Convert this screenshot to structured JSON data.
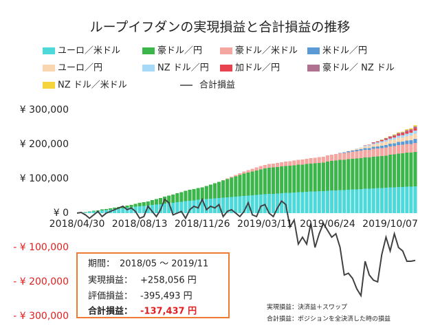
{
  "chart_data": {
    "type": "bar",
    "title": "ループイフダンの実現損益と合計損益の推移",
    "categories": [
      "2018/04/30",
      null,
      null,
      null,
      null,
      null,
      null,
      null,
      null,
      null,
      null,
      null,
      null,
      null,
      null,
      "2018/08/13",
      null,
      null,
      null,
      null,
      null,
      null,
      null,
      null,
      null,
      null,
      null,
      null,
      null,
      null,
      "2018/11/26",
      null,
      null,
      null,
      null,
      null,
      null,
      null,
      null,
      null,
      null,
      null,
      null,
      null,
      null,
      "2019/03/11",
      null,
      null,
      null,
      null,
      null,
      null,
      null,
      null,
      null,
      null,
      null,
      null,
      null,
      null,
      "2019/06/24",
      null,
      null,
      null,
      null,
      null,
      null,
      null,
      null,
      null,
      null,
      null,
      null,
      null,
      null,
      "2019/10/07",
      null,
      null,
      null,
      null,
      null,
      null
    ],
    "ylim": [
      -300000,
      300000
    ],
    "yticks": [
      {
        "value": 300000,
        "label": "¥ 300,000"
      },
      {
        "value": 200000,
        "label": "¥ 200,000"
      },
      {
        "value": 100000,
        "label": "¥ 100,000"
      },
      {
        "value": 0,
        "label": "¥ 0"
      },
      {
        "value": -100000,
        "label": "- ¥ 100,000"
      },
      {
        "value": -200000,
        "label": "- ¥ 200,000"
      },
      {
        "value": -300000,
        "label": "- ¥ 300,000"
      }
    ],
    "grid": false,
    "series": [
      {
        "name": "ユーロ／米ドル",
        "type": "bar",
        "color": "#4dd9d9",
        "values": [
          0,
          1000,
          2000,
          4000,
          5000,
          6000,
          8000,
          9000,
          10000,
          12000,
          13000,
          14000,
          16000,
          17000,
          19000,
          20000,
          21000,
          22000,
          24000,
          25000,
          26000,
          28000,
          29000,
          30000,
          32000,
          33000,
          35000,
          36000,
          37000,
          39000,
          40000,
          41000,
          42000,
          43000,
          44000,
          45000,
          46000,
          47000,
          48000,
          49000,
          50000,
          51000,
          52000,
          53000,
          54000,
          55000,
          56000,
          56000,
          57000,
          58000,
          59000,
          59000,
          60000,
          61000,
          61000,
          62000,
          63000,
          63000,
          64000,
          64000,
          65000,
          66000,
          66000,
          67000,
          67000,
          68000,
          69000,
          69000,
          70000,
          71000,
          71000,
          72000,
          73000,
          73000,
          74000,
          75000,
          75000,
          76000,
          76000,
          77000,
          77000,
          78000
        ]
      },
      {
        "name": "豪ドル／円",
        "type": "bar",
        "color": "#3cb54a",
        "values": [
          0,
          0,
          1000,
          1000,
          2000,
          2000,
          3000,
          3000,
          4000,
          4000,
          5000,
          5000,
          6000,
          7000,
          8000,
          10000,
          11000,
          12000,
          14000,
          16000,
          18000,
          20000,
          22000,
          24000,
          26000,
          28000,
          30000,
          32000,
          33000,
          34000,
          35000,
          38000,
          41000,
          44000,
          47000,
          50000,
          53000,
          56000,
          59000,
          62000,
          65000,
          67000,
          69000,
          71000,
          73000,
          75000,
          76000,
          77000,
          77000,
          78000,
          78000,
          79000,
          79000,
          80000,
          80000,
          81000,
          81000,
          82000,
          82000,
          83000,
          85000,
          86000,
          87000,
          88000,
          88000,
          89000,
          89000,
          90000,
          90000,
          91000,
          91000,
          92000,
          92000,
          93000,
          93000,
          95000,
          96000,
          97000,
          98000,
          99000,
          99000,
          100000
        ]
      },
      {
        "name": "豪ドル／米ドル",
        "type": "bar",
        "color": "#f4a6a0",
        "values": [
          0,
          0,
          0,
          0,
          0,
          0,
          0,
          0,
          0,
          0,
          0,
          0,
          0,
          0,
          0,
          0,
          0,
          0,
          0,
          0,
          0,
          0,
          0,
          0,
          0,
          0,
          0,
          0,
          0,
          0,
          0,
          0,
          0,
          0,
          0,
          1000,
          2000,
          3000,
          4000,
          5000,
          6000,
          7000,
          8000,
          9000,
          10000,
          10000,
          11000,
          11000,
          12000,
          12000,
          13000,
          13000,
          14000,
          14000,
          15000,
          15000,
          16000,
          16000,
          17000,
          17000,
          18000,
          18000,
          19000,
          19000,
          20000,
          20000,
          21000,
          21000,
          22000,
          22000,
          22000,
          23000,
          23000,
          23000,
          24000,
          24000,
          24000,
          25000,
          25000,
          25000,
          25000,
          26000
        ]
      },
      {
        "name": "米ドル／円",
        "type": "bar",
        "color": "#5b9bd5",
        "values": [
          0,
          0,
          0,
          0,
          0,
          0,
          0,
          0,
          0,
          0,
          0,
          0,
          0,
          0,
          0,
          0,
          0,
          0,
          0,
          0,
          0,
          0,
          0,
          0,
          0,
          0,
          0,
          0,
          0,
          0,
          0,
          0,
          0,
          0,
          0,
          0,
          0,
          0,
          0,
          0,
          0,
          0,
          0,
          0,
          0,
          0,
          0,
          0,
          0,
          0,
          0,
          0,
          0,
          0,
          0,
          0,
          0,
          0,
          0,
          0,
          0,
          0,
          0,
          1000,
          2000,
          3000,
          3000,
          4000,
          4000,
          5000,
          5000,
          6000,
          6000,
          7000,
          7000,
          8000,
          8000,
          9000,
          9000,
          10000,
          11000,
          12000
        ]
      },
      {
        "name": "ユーロ／円",
        "type": "bar",
        "color": "#f9d5b0",
        "values": [
          0,
          0,
          0,
          0,
          0,
          0,
          0,
          0,
          0,
          0,
          0,
          0,
          0,
          0,
          0,
          0,
          0,
          0,
          0,
          0,
          0,
          0,
          0,
          0,
          0,
          0,
          0,
          0,
          0,
          0,
          0,
          0,
          0,
          0,
          0,
          0,
          0,
          0,
          0,
          0,
          0,
          0,
          0,
          0,
          0,
          0,
          0,
          0,
          0,
          0,
          0,
          0,
          0,
          0,
          0,
          0,
          0,
          0,
          0,
          0,
          0,
          0,
          0,
          0,
          0,
          1000,
          2000,
          3000,
          4000,
          5000,
          6000,
          7000,
          8000,
          9000,
          10000,
          10000,
          11000,
          12000,
          12000,
          13000,
          14000,
          15000
        ]
      },
      {
        "name": "NZ ドル／円",
        "type": "bar",
        "color": "#a6d8f7",
        "values": [
          0,
          0,
          0,
          0,
          0,
          0,
          0,
          0,
          0,
          0,
          0,
          0,
          0,
          0,
          0,
          0,
          0,
          0,
          0,
          0,
          0,
          0,
          0,
          0,
          0,
          0,
          0,
          0,
          0,
          0,
          0,
          0,
          0,
          0,
          0,
          0,
          0,
          0,
          0,
          0,
          0,
          0,
          0,
          0,
          0,
          0,
          0,
          0,
          0,
          0,
          0,
          0,
          0,
          0,
          0,
          0,
          0,
          0,
          0,
          0,
          0,
          0,
          0,
          0,
          0,
          0,
          0,
          1000,
          1000,
          2000,
          3000,
          3000,
          4000,
          4000,
          5000,
          5000,
          6000,
          6000,
          7000,
          7000,
          8000,
          9000
        ]
      },
      {
        "name": "加ドル／円",
        "type": "bar",
        "color": "#e8414f",
        "values": [
          0,
          0,
          0,
          0,
          0,
          0,
          0,
          0,
          0,
          0,
          0,
          0,
          0,
          0,
          0,
          0,
          0,
          0,
          0,
          0,
          0,
          0,
          0,
          0,
          0,
          0,
          0,
          0,
          0,
          0,
          0,
          0,
          0,
          0,
          0,
          0,
          0,
          0,
          0,
          0,
          0,
          0,
          0,
          0,
          0,
          0,
          0,
          0,
          0,
          0,
          0,
          0,
          0,
          0,
          0,
          0,
          0,
          0,
          0,
          0,
          0,
          0,
          0,
          0,
          0,
          0,
          0,
          0,
          0,
          1000,
          1000,
          2000,
          2000,
          3000,
          3000,
          4000,
          4000,
          5000,
          5000,
          6000,
          6000,
          7000
        ]
      },
      {
        "name": "豪ドル／ NZ ドル",
        "type": "bar",
        "color": "#b07090",
        "values": [
          0,
          0,
          0,
          0,
          0,
          0,
          0,
          0,
          0,
          0,
          0,
          0,
          0,
          0,
          0,
          0,
          0,
          0,
          0,
          0,
          0,
          0,
          0,
          0,
          0,
          0,
          0,
          0,
          0,
          0,
          0,
          0,
          0,
          0,
          0,
          0,
          0,
          0,
          0,
          0,
          0,
          0,
          0,
          0,
          0,
          0,
          0,
          0,
          0,
          0,
          0,
          0,
          0,
          0,
          0,
          0,
          0,
          0,
          0,
          0,
          0,
          0,
          0,
          0,
          0,
          0,
          0,
          0,
          0,
          0,
          0,
          1000,
          1000,
          1000,
          2000,
          2000,
          3000,
          3000,
          3000,
          4000,
          4000,
          5000
        ]
      },
      {
        "name": "NZ ドル／米ドル",
        "type": "bar",
        "color": "#f5d33a",
        "values": [
          0,
          0,
          0,
          0,
          0,
          0,
          0,
          0,
          0,
          0,
          0,
          0,
          0,
          0,
          0,
          0,
          0,
          0,
          0,
          0,
          0,
          0,
          0,
          0,
          0,
          0,
          0,
          0,
          0,
          0,
          0,
          0,
          0,
          0,
          0,
          0,
          0,
          0,
          0,
          0,
          0,
          0,
          0,
          0,
          0,
          0,
          0,
          0,
          0,
          0,
          0,
          0,
          0,
          0,
          0,
          0,
          0,
          0,
          0,
          0,
          0,
          0,
          0,
          0,
          0,
          0,
          0,
          0,
          0,
          0,
          0,
          0,
          0,
          1000,
          1000,
          1000,
          2000,
          2000,
          2000,
          3000,
          3000,
          4000
        ]
      },
      {
        "name": "合計損益",
        "type": "line",
        "color": "#404040",
        "values": [
          0,
          2000,
          -5000,
          -15000,
          -5000,
          5000,
          -10000,
          0,
          5000,
          10000,
          15000,
          20000,
          10000,
          15000,
          5000,
          -15000,
          -10000,
          20000,
          5000,
          -10000,
          10000,
          40000,
          30000,
          -5000,
          0,
          5000,
          -15000,
          10000,
          20000,
          15000,
          40000,
          10000,
          20000,
          15000,
          25000,
          -10000,
          5000,
          10000,
          0,
          -10000,
          5000,
          30000,
          -5000,
          -10000,
          20000,
          25000,
          0,
          -10000,
          15000,
          35000,
          25000,
          -40000,
          -20000,
          -90000,
          -70000,
          -90000,
          -30000,
          -100000,
          -60000,
          -30000,
          -50000,
          -70000,
          -60000,
          -100000,
          -180000,
          -175000,
          -190000,
          -220000,
          -240000,
          -140000,
          -180000,
          -195000,
          -200000,
          -120000,
          -70000,
          -110000,
          -60000,
          -100000,
          -110000,
          -140000,
          -140000,
          -137437
        ]
      }
    ],
    "summary": {
      "period_label": "期間：",
      "period": "2018/05 ～ 2019/11",
      "realized_label": "実現損益：",
      "realized": "+258,056 円",
      "unrealized_label": "評価損益：",
      "unrealized": "-395,493 円",
      "total_label": "合計損益：",
      "total": "-137,437 円"
    },
    "notes": [
      "実現損益：決済益＋スワップ",
      "合計損益：ポジションを全決済した時の損益"
    ]
  }
}
